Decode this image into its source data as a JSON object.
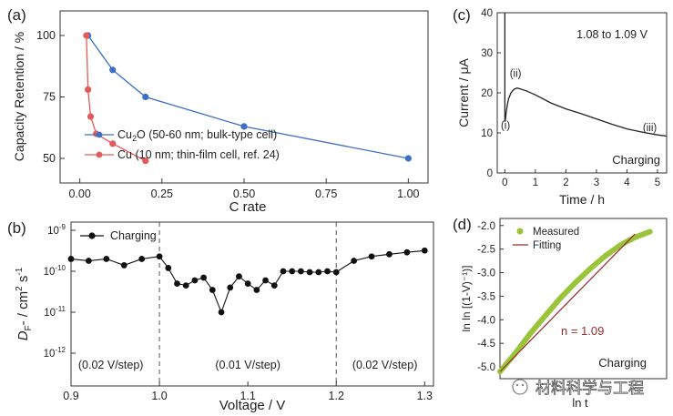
{
  "chart_data": [
    {
      "panel": "(a)",
      "type": "line",
      "xlabel": "C rate",
      "ylabel": "Capacity Retention / %",
      "xlim": [
        -0.06,
        1.06
      ],
      "ylim": [
        40,
        110
      ],
      "xticks": [
        0.0,
        0.25,
        0.5,
        0.75,
        1.0
      ],
      "xtick_labels": [
        "0.00",
        "0.25",
        "0.50",
        "0.75",
        "1.00"
      ],
      "yticks": [
        50,
        75,
        100
      ],
      "ytick_labels": [
        "50",
        "75",
        "100"
      ],
      "grid": false,
      "legend_position": "bottom-left",
      "series": [
        {
          "name": "Cu2O (50-60 nm; bulk-type cell)",
          "legend_main": "Cu",
          "legend_sub": "2",
          "legend_rest": "O (50-60 nm; bulk-type cell)",
          "color": "#3d6fc4",
          "x": [
            0.025,
            0.1,
            0.2,
            0.5,
            1.0
          ],
          "y": [
            100,
            86,
            75,
            63,
            50
          ]
        },
        {
          "name": "Cu (10 nm; thin-film cell, ref. 24)",
          "legend_main": "Cu (10 nm; thin-film cell, ref. 24)",
          "legend_sub": "",
          "legend_rest": "",
          "color": "#e45a5a",
          "x": [
            0.02,
            0.025,
            0.033,
            0.05,
            0.1,
            0.2
          ],
          "y": [
            100,
            78,
            67,
            60,
            56,
            49
          ]
        }
      ]
    },
    {
      "panel": "(b)",
      "type": "line",
      "xlabel": "Voltage / V",
      "ylabel_main": "D",
      "ylabel_sub": "F",
      "ylabel_rest": "- / cm",
      "ylabel_sup": "2",
      "ylabel_end": " s",
      "ylabel_sup2": "-1",
      "xlim": [
        0.9,
        1.31
      ],
      "ylog": true,
      "ylim_exp": [
        -12.8,
        -8.8
      ],
      "xticks": [
        0.9,
        1.0,
        1.1,
        1.2,
        1.3
      ],
      "xtick_labels": [
        "0.9",
        "1.0",
        "1.1",
        "1.2",
        "1.3"
      ],
      "ytick_exps": [
        "-12",
        "-11",
        "-10",
        "-9"
      ],
      "ytick_base": "10",
      "divider_x": [
        1.0,
        1.2
      ],
      "regions": [
        {
          "label": "(0.02 V/step)",
          "x": 0.945
        },
        {
          "label": "(0.01 V/step)",
          "x": 1.1
        },
        {
          "label": "(0.02 V/step)",
          "x": 1.255
        }
      ],
      "series": [
        {
          "name": "Charging",
          "color": "#111111",
          "x": [
            0.9,
            0.92,
            0.94,
            0.96,
            0.98,
            1.0,
            1.01,
            1.02,
            1.03,
            1.04,
            1.05,
            1.06,
            1.07,
            1.08,
            1.09,
            1.1,
            1.11,
            1.12,
            1.13,
            1.14,
            1.15,
            1.16,
            1.17,
            1.18,
            1.19,
            1.2,
            1.22,
            1.24,
            1.26,
            1.28,
            1.3
          ],
          "y": [
            2e-10,
            1.8e-10,
            2e-10,
            1.4e-10,
            2e-10,
            2.3e-10,
            1.2e-10,
            5e-11,
            4.5e-11,
            6e-11,
            7e-11,
            3.5e-11,
            1e-11,
            4e-11,
            7.5e-11,
            5e-11,
            3.5e-11,
            6e-11,
            4.5e-11,
            1e-10,
            1e-10,
            1e-10,
            9.5e-11,
            9.5e-11,
            1e-10,
            9.5e-11,
            1.8e-10,
            2.3e-10,
            2.6e-10,
            2.9e-10,
            3.2e-10
          ]
        }
      ]
    },
    {
      "panel": "(c)",
      "type": "line",
      "xlabel": "Time / h",
      "ylabel": "Current / μA",
      "xlim": [
        -0.25,
        5.3
      ],
      "ylim": [
        0,
        40
      ],
      "xticks": [
        0,
        1,
        2,
        3,
        4,
        5
      ],
      "xtick_labels": [
        "0",
        "1",
        "2",
        "3",
        "4",
        "5"
      ],
      "yticks": [
        0,
        10,
        20,
        30,
        40
      ],
      "ytick_labels": [
        "0",
        "10",
        "20",
        "30",
        "40"
      ],
      "annotation": "1.08 to 1.09 V",
      "corner_label": "Charging",
      "point_labels": [
        {
          "text": "(i)",
          "x": 0.02,
          "y": 11
        },
        {
          "text": "(ii)",
          "x": 0.35,
          "y": 24
        },
        {
          "text": "(iii)",
          "x": 4.75,
          "y": 10.5
        }
      ],
      "series": [
        {
          "name": "Current",
          "color": "#222222",
          "x": [
            0.0,
            0.0,
            0.02,
            0.05,
            0.08,
            0.12,
            0.2,
            0.3,
            0.4,
            0.5,
            0.7,
            1.0,
            1.5,
            2.0,
            2.5,
            3.0,
            3.5,
            4.0,
            4.5,
            5.0,
            5.3
          ],
          "y": [
            40,
            12.8,
            13.5,
            15.5,
            17.0,
            18.5,
            20.0,
            20.9,
            21.2,
            21.0,
            20.5,
            19.5,
            17.5,
            16.0,
            14.8,
            13.5,
            12.2,
            11.0,
            10.2,
            9.5,
            9.2
          ]
        }
      ]
    },
    {
      "panel": "(d)",
      "type": "scatter",
      "xlabel": "ln t",
      "ylabel": "ln ln [(1-V)⁻¹)]",
      "ylim": [
        -5.25,
        -1.85
      ],
      "yticks": [
        -5.0,
        -4.5,
        -4.0,
        -3.5,
        -3.0,
        -2.5,
        -2.0
      ],
      "ytick_labels": [
        "-5.0",
        "-4.5",
        "-4.0",
        "-3.5",
        "-3.0",
        "-2.5",
        "-2.0"
      ],
      "xlim": [
        0,
        1
      ],
      "annotation": "n = 1.09",
      "corner_label": "Charging",
      "legend": [
        {
          "label": "Measured",
          "color": "#9ac43a"
        },
        {
          "label": "Fitting",
          "color": "#9b2a2a"
        }
      ],
      "measured_x": [
        0.0,
        0.1,
        0.2,
        0.3,
        0.4,
        0.5,
        0.6,
        0.7,
        0.8,
        0.9,
        1.0
      ],
      "measured_y": [
        -5.1,
        -4.72,
        -4.3,
        -3.92,
        -3.55,
        -3.22,
        -2.92,
        -2.65,
        -2.42,
        -2.25,
        -2.13
      ],
      "fitting_x": [
        0.0,
        0.9
      ],
      "fitting_y": [
        -5.1,
        -2.18
      ]
    }
  ],
  "watermark": "材料科学与工程"
}
